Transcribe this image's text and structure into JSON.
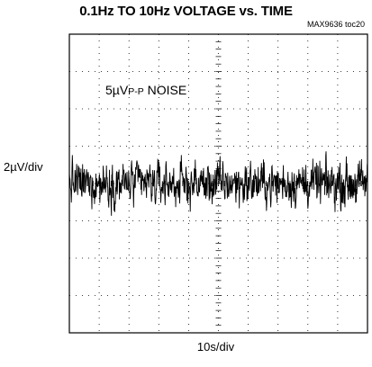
{
  "chart_data": {
    "type": "line",
    "title": "0.1Hz TO 10Hz VOLTAGE vs. TIME",
    "figure_tag": "MAX9636 toc20",
    "ylabel": "2µV/div",
    "xlabel": "10s/div",
    "annotation": {
      "main": "5µV",
      "sub": "P-P",
      "suffix": " NOISE"
    },
    "grid": true,
    "x_divisions": 10,
    "y_divisions": 8,
    "ylim": [
      -8,
      8
    ],
    "xlim": [
      0,
      100
    ],
    "series": [
      {
        "noise_peak_to_peak_uV": 5,
        "offset_uV": 0
      }
    ]
  }
}
